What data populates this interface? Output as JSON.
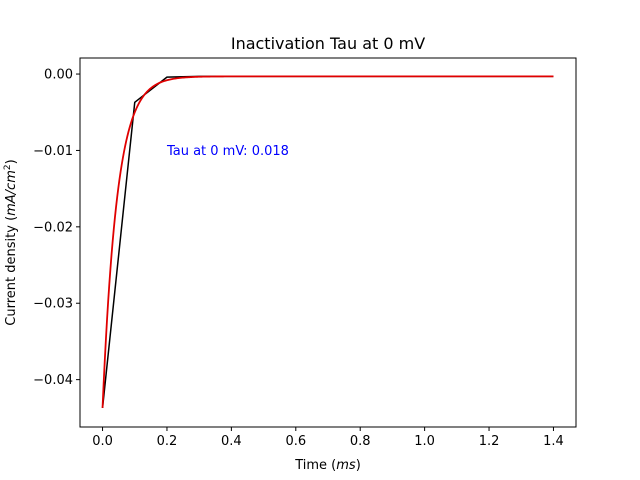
{
  "chart_data": {
    "type": "line",
    "title": "Inactivation Tau at 0 mV",
    "xlabel": "Time (",
    "xlabel_unit": "ms",
    "xlabel_close": ")",
    "ylabel": "Current density (",
    "ylabel_unit": "mA/cm",
    "ylabel_unit_exp": "2",
    "ylabel_close": ")",
    "xlim": [
      -0.07,
      1.47
    ],
    "ylim": [
      -0.0462,
      0.0021
    ],
    "xticks": [
      0.0,
      0.2,
      0.4,
      0.6,
      0.8,
      1.0,
      1.2,
      1.4
    ],
    "xtick_labels": [
      "0.0",
      "0.2",
      "0.4",
      "0.6",
      "0.8",
      "1.0",
      "1.2",
      "1.4"
    ],
    "yticks": [
      0.0,
      -0.01,
      -0.02,
      -0.03,
      -0.04
    ],
    "ytick_labels": [
      "0.00",
      "−0.01",
      "−0.02",
      "−0.03",
      "−0.04"
    ],
    "grid": false,
    "series": [
      {
        "color": "#000000",
        "x": [
          0.0,
          0.1,
          0.2,
          0.3,
          0.4,
          0.5,
          0.6,
          0.7,
          0.8,
          0.9,
          1.0,
          1.1,
          1.2,
          1.3,
          1.4
        ],
        "values": [
          -0.0437,
          -0.0037,
          -0.0004,
          -0.0003,
          -0.0003,
          -0.0003,
          -0.0003,
          -0.0003,
          -0.0003,
          -0.0003,
          -0.0003,
          -0.0003,
          -0.0003,
          -0.0003,
          -0.0003
        ]
      },
      {
        "color": "#e00000",
        "fit": {
          "amplitude": -0.0434,
          "tau": 0.018,
          "offset": -0.0003,
          "x_start": 0.0,
          "x_end": 1.4
        }
      }
    ],
    "annotations": [
      {
        "text": "Tau at 0 mV: 0.018",
        "x": 0.2,
        "y": -0.01,
        "color": "#0000ff"
      }
    ]
  }
}
